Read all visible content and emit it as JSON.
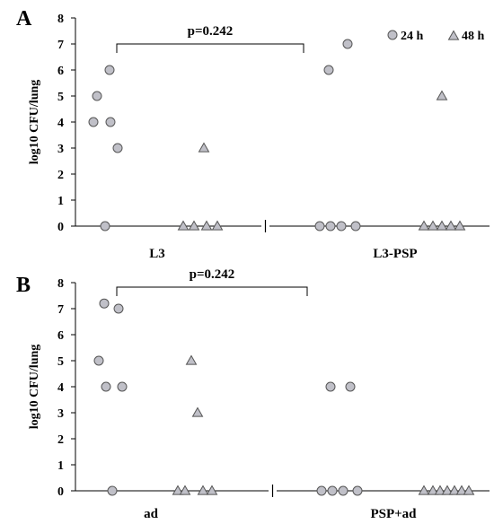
{
  "chart_data": [
    {
      "type": "scatter",
      "panel_label": "A",
      "ylabel": "log10 CFU/lung",
      "ylim": [
        0,
        8
      ],
      "yticks": [
        "0",
        "1",
        "2",
        "3",
        "4",
        "5",
        "6",
        "7",
        "8"
      ],
      "group_labels": [
        "L3",
        "L3-PSP"
      ],
      "annotation": "p=0.242",
      "legend": [
        "24 h",
        "48 h"
      ],
      "legend_position": "top-right",
      "series": [
        {
          "name": "24 h",
          "marker": "circle",
          "group": "L3",
          "values": [
            4,
            5,
            6,
            4,
            3,
            0
          ]
        },
        {
          "name": "48 h",
          "marker": "triangle",
          "group": "L3",
          "values": [
            3,
            0,
            0,
            0,
            0
          ]
        },
        {
          "name": "24 h",
          "marker": "circle",
          "group": "L3-PSP",
          "values": [
            6,
            7,
            0,
            0,
            0,
            0
          ]
        },
        {
          "name": "48 h",
          "marker": "triangle",
          "group": "L3-PSP",
          "values": [
            5,
            0,
            0,
            0,
            0,
            0
          ]
        }
      ]
    },
    {
      "type": "scatter",
      "panel_label": "B",
      "ylabel": "log10 CFU/lung",
      "ylim": [
        0,
        8
      ],
      "yticks": [
        "0",
        "1",
        "2",
        "3",
        "4",
        "5",
        "6",
        "7",
        "8"
      ],
      "group_labels": [
        "ad",
        "PSP+ad"
      ],
      "annotation": "p=0.242",
      "series": [
        {
          "name": "24 h",
          "marker": "circle",
          "group": "ad",
          "values": [
            5,
            7.2,
            4,
            7,
            4,
            0
          ]
        },
        {
          "name": "48 h",
          "marker": "triangle",
          "group": "ad",
          "values": [
            5,
            3,
            0,
            0,
            0,
            0
          ]
        },
        {
          "name": "24 h",
          "marker": "circle",
          "group": "PSP+ad",
          "values": [
            4,
            4,
            0,
            0,
            0,
            0
          ]
        },
        {
          "name": "48 h",
          "marker": "triangle",
          "group": "PSP+ad",
          "values": [
            0,
            0,
            0,
            0,
            0,
            0,
            0
          ]
        }
      ]
    }
  ],
  "colors": {
    "marker_fill": "#c0c0c8",
    "marker_stroke": "#555555",
    "axis": "#000000"
  }
}
